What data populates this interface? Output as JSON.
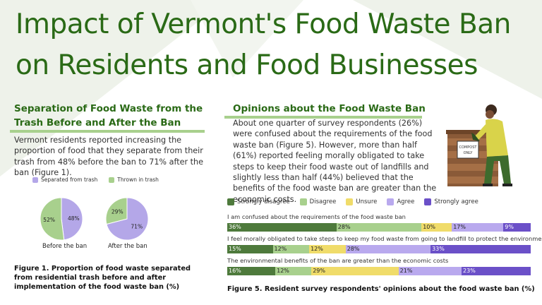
{
  "title": "Impact of Vermont's Food Waste Ban on Residents and Food Businesses",
  "left_section": {
    "heading": "Separation of Food Waste from the Trash Before and After the Ban",
    "paragraph": "Vermont residents reported increasing the proportion of food that they separate from their trash from 48% before the ban to 71% after the ban (Figure 1).",
    "figure_caption": "Figure 1. Proportion of food waste separated from residential trash before and after implementation of the food waste ban (%)"
  },
  "right_section": {
    "heading": "Opinions about the Food Waste Ban",
    "paragraph": "About one quarter of survey respondents  (26%) were confused about the requirements of the food waste ban (Figure 5).  However, more than half (61%) reported feeling morally obligated to take steps to keep their food waste out of landfills and slightly less than half (44%) believed that the benefits of the food waste ban are greater than the economic costs.",
    "figure_caption": "Figure 5. Resident survey respondents' opinions about the food waste ban (%)",
    "illustration_sign": "COMPOST ONLY"
  },
  "chart_data": [
    {
      "type": "pie",
      "legend": [
        "Separated from trash",
        "Thrown in trash"
      ],
      "colors": {
        "Separated from trash": "#b4a7e8",
        "Thrown in trash": "#a8d08d"
      },
      "pies": [
        {
          "label": "Before the ban",
          "values": {
            "Separated from trash": 48,
            "Thrown in trash": 52
          }
        },
        {
          "label": "After the ban",
          "values": {
            "Separated from trash": 71,
            "Thrown in trash": 29
          }
        }
      ]
    },
    {
      "type": "bar",
      "orientation": "horizontal-stacked",
      "legend_placement": "top",
      "categories": [
        "Strongly disagree",
        "Disagree",
        "Unsure",
        "Agree",
        "Strongly agree"
      ],
      "colors": [
        "#4e7a3c",
        "#a8d08d",
        "#f0dc6a",
        "#b9a9ee",
        "#6b50c8"
      ],
      "questions": [
        {
          "label": "I am confused about the requirements of the food waste ban",
          "values": [
            36,
            28,
            10,
            17,
            9
          ]
        },
        {
          "label": "I feel morally obligated to take steps to keep my food waste from going to landfill to protect the environment",
          "values": [
            15,
            12,
            12,
            28,
            33
          ]
        },
        {
          "label": "The environmental benefits of the ban are greater than the economic costs",
          "values": [
            16,
            12,
            29,
            21,
            23
          ]
        }
      ]
    }
  ]
}
